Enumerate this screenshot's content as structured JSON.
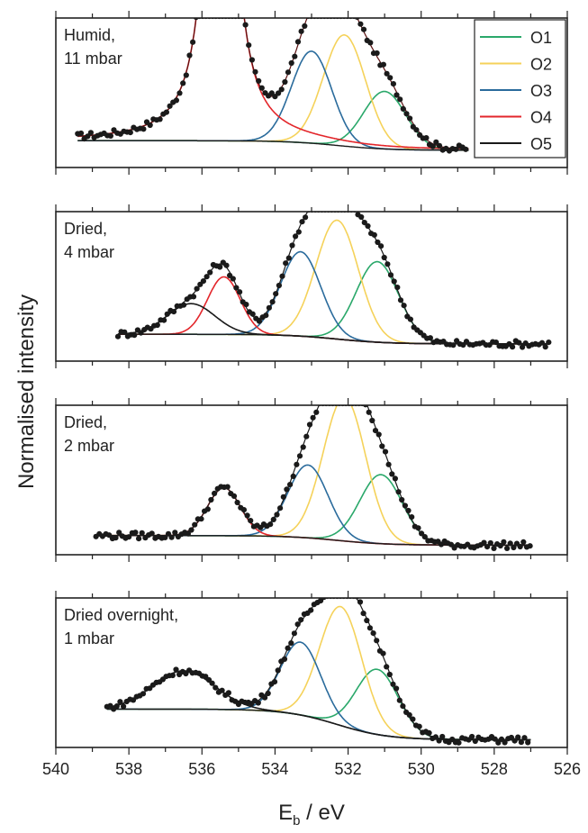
{
  "colors": {
    "O1": "#2aa86a",
    "O2": "#f5d25a",
    "O3": "#2a6b9c",
    "O4": "#e3262b",
    "O5": "#1a1a1a",
    "data": "#1a1a1a",
    "frame": "#222222"
  },
  "chart_data": {
    "type": "scatter",
    "xlabel": "E_b / eV",
    "ylabel": "Normalised intensity",
    "xlim": [
      540,
      526
    ],
    "x_reversed": true,
    "xticks": [
      540,
      538,
      536,
      534,
      532,
      530,
      528,
      526
    ],
    "legend": {
      "placement": "top-right of first panel",
      "entries": [
        "O1",
        "O2",
        "O3",
        "O4",
        "O5"
      ]
    },
    "panels": [
      {
        "label_line1": "Humid,",
        "label_line2": "11 mbar",
        "data_range": [
          539.4,
          528.7
        ],
        "baseline": {
          "left": 0.14,
          "right": 0.09
        },
        "peaks": [
          {
            "name": "O1",
            "center": 531.0,
            "height": 0.3,
            "width": 0.58
          },
          {
            "name": "O2",
            "center": 532.1,
            "height": 0.58,
            "width": 0.58
          },
          {
            "name": "O3",
            "center": 533.0,
            "height": 0.48,
            "width": 0.55
          },
          {
            "name": "O4",
            "center": 535.5,
            "height": 3.2,
            "width": 0.33,
            "shape": "lorentz"
          }
        ]
      },
      {
        "label_line1": "Dried,",
        "label_line2": "4 mbar",
        "data_range": [
          538.3,
          526.5
        ],
        "baseline": {
          "left": 0.14,
          "right": 0.09
        },
        "peaks": [
          {
            "name": "O1",
            "center": 531.2,
            "height": 0.42,
            "width": 0.58
          },
          {
            "name": "O2",
            "center": 532.3,
            "height": 0.62,
            "width": 0.58
          },
          {
            "name": "O3",
            "center": 533.3,
            "height": 0.44,
            "width": 0.55
          },
          {
            "name": "O4",
            "center": 535.4,
            "height": 0.3,
            "width": 0.45
          },
          {
            "name": "O5",
            "center": 536.3,
            "height": 0.16,
            "width": 0.65
          }
        ]
      },
      {
        "label_line1": "Dried,",
        "label_line2": "2 mbar",
        "data_range": [
          538.9,
          527.0
        ],
        "baseline": {
          "left": 0.1,
          "right": 0.05
        },
        "peaks": [
          {
            "name": "O1",
            "center": 531.1,
            "height": 0.36,
            "width": 0.58
          },
          {
            "name": "O2",
            "center": 532.1,
            "height": 0.75,
            "width": 0.58
          },
          {
            "name": "O3",
            "center": 533.1,
            "height": 0.38,
            "width": 0.55
          },
          {
            "name": "O4",
            "center": 535.4,
            "height": 0.25,
            "width": 0.45
          }
        ]
      },
      {
        "label_line1": "Dried overnight,",
        "label_line2": "1 mbar",
        "data_range": [
          538.6,
          527.0
        ],
        "baseline": {
          "left": 0.2,
          "right": 0.04
        },
        "peaks": [
          {
            "name": "O1",
            "center": 531.2,
            "height": 0.34,
            "width": 0.58
          },
          {
            "name": "O2",
            "center": 532.2,
            "height": 0.62,
            "width": 0.58
          },
          {
            "name": "O3",
            "center": 533.3,
            "height": 0.38,
            "width": 0.55
          },
          {
            "name": "O5",
            "center": 536.5,
            "height": 0.2,
            "width": 0.85
          }
        ]
      }
    ]
  },
  "axes": {
    "xlabel_main": "E",
    "xlabel_sub": "b",
    "xlabel_unit": " / eV",
    "ylabel": "Normalised intensity"
  }
}
